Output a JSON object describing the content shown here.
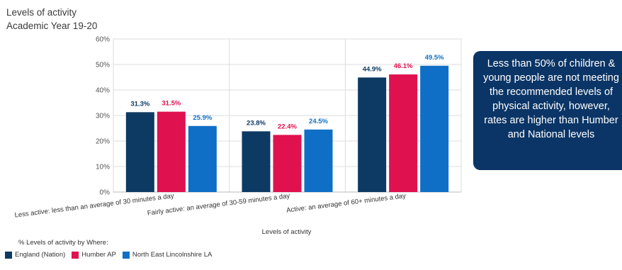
{
  "header": {
    "title": "Levels of activity",
    "subtitle": "Academic Year 19-20"
  },
  "callout": {
    "text": "Less than 50% of children & young people are not meeting the recommended levels of physical activity, however, rates are higher than Humber and National levels"
  },
  "legend": {
    "title": "% Levels of activity by Where:"
  },
  "chart_data": {
    "type": "bar",
    "title": "Levels of activity",
    "subtitle": "Academic Year 19-20",
    "xlabel": "Levels of activity",
    "ylabel": "",
    "ylim": [
      0,
      60
    ],
    "yticks": [
      0,
      10,
      20,
      30,
      40,
      50,
      60
    ],
    "ytick_labels": [
      "0%",
      "10%",
      "20%",
      "30%",
      "40%",
      "50%",
      "60%"
    ],
    "grid": true,
    "legend_position": "bottom-left",
    "categories": [
      "Less active: less than an average of 30 minutes a day",
      "Fairly active: an average of 30-59 minutes a day",
      "Active: an average of 60+ minutes a day"
    ],
    "series": [
      {
        "name": "England (Nation)",
        "color": "#0d3a63",
        "values": [
          31.3,
          23.8,
          44.9
        ],
        "labels": [
          "31.3%",
          "23.8%",
          "44.9%"
        ]
      },
      {
        "name": "Humber AP",
        "color": "#e0114f",
        "values": [
          31.5,
          22.4,
          46.1
        ],
        "labels": [
          "31.5%",
          "22.4%",
          "46.1%"
        ]
      },
      {
        "name": "North East Lincolnshire LA",
        "color": "#0f6fc6",
        "values": [
          25.9,
          24.5,
          49.5
        ],
        "labels": [
          "25.9%",
          "24.5%",
          "49.5%"
        ]
      }
    ]
  }
}
